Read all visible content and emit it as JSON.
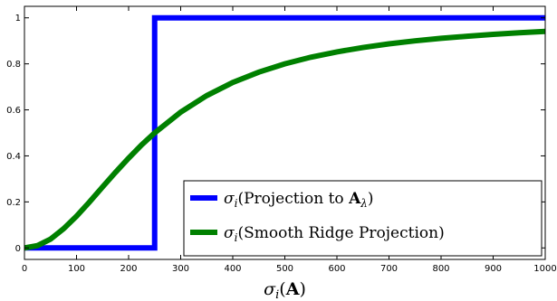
{
  "chart_data": {
    "type": "line",
    "xlabel": "σᵢ(A)",
    "xlabel_parts": {
      "sym": "σ",
      "sub": "i",
      "open": "(",
      "bold": "A",
      "close": ")"
    },
    "xlim": [
      0,
      1000
    ],
    "ylim": [
      -0.05,
      1.05
    ],
    "x_ticks": [
      0,
      100,
      200,
      300,
      400,
      500,
      600,
      700,
      800,
      900,
      1000
    ],
    "x_tick_labels": [
      "0",
      "100",
      "200",
      "300",
      "400",
      "500",
      "600",
      "700",
      "800",
      "900",
      "1000"
    ],
    "y_ticks": [
      0,
      0.2,
      0.4,
      0.6,
      0.8,
      1
    ],
    "y_tick_labels": [
      "0",
      "0.2",
      "0.4",
      "0.6",
      "0.8",
      "1"
    ],
    "grid": false,
    "legend_position": "bottom-right",
    "series": [
      {
        "name": "σᵢ(Projection to A_λ)",
        "legend_parts": {
          "sym": "σ",
          "sub": "i",
          "pre": "(Projection to ",
          "bold": "A",
          "bsub": "λ",
          "post": ")"
        },
        "color": "#0000ff",
        "x": [
          0,
          250,
          250,
          1000
        ],
        "y": [
          0,
          0,
          1,
          1
        ]
      },
      {
        "name": "σᵢ(Smooth Ridge Projection)",
        "legend_parts": {
          "sym": "σ",
          "sub": "i",
          "pre": "(Smooth Ridge Projection)",
          "bold": "",
          "bsub": "",
          "post": ""
        },
        "color": "#008000",
        "x": [
          0,
          25,
          50,
          75,
          100,
          125,
          150,
          175,
          200,
          225,
          250,
          300,
          350,
          400,
          450,
          500,
          550,
          600,
          650,
          700,
          750,
          800,
          850,
          900,
          950,
          1000
        ],
        "y": [
          0,
          0.01,
          0.038,
          0.083,
          0.138,
          0.2,
          0.265,
          0.329,
          0.39,
          0.448,
          0.5,
          0.59,
          0.662,
          0.719,
          0.764,
          0.8,
          0.829,
          0.852,
          0.871,
          0.887,
          0.9,
          0.911,
          0.92,
          0.928,
          0.935,
          0.941
        ]
      }
    ]
  }
}
